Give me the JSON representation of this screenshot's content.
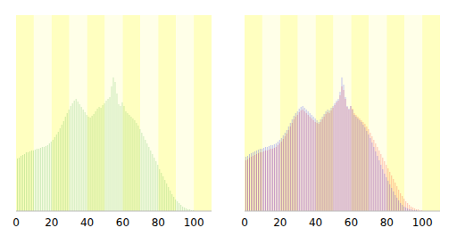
{
  "chart_data": [
    {
      "type": "bar",
      "x": [
        0,
        1,
        2,
        3,
        4,
        5,
        6,
        7,
        8,
        9,
        10,
        11,
        12,
        13,
        14,
        15,
        16,
        17,
        18,
        19,
        20,
        21,
        22,
        23,
        24,
        25,
        26,
        27,
        28,
        29,
        30,
        31,
        32,
        33,
        34,
        35,
        36,
        37,
        38,
        39,
        40,
        41,
        42,
        43,
        44,
        45,
        46,
        47,
        48,
        49,
        50,
        51,
        52,
        53,
        54,
        55,
        56,
        57,
        58,
        59,
        60,
        61,
        62,
        63,
        64,
        65,
        66,
        67,
        68,
        69,
        70,
        71,
        72,
        73,
        74,
        75,
        76,
        77,
        78,
        79,
        80,
        81,
        82,
        83,
        84,
        85,
        86,
        87,
        88,
        89,
        90,
        91,
        92,
        93,
        94,
        95,
        96,
        97,
        98,
        99,
        100
      ],
      "values": [
        57,
        59,
        60,
        62,
        63,
        64,
        66,
        66,
        67,
        68,
        68,
        69,
        70,
        70,
        71,
        72,
        72,
        73,
        74,
        76,
        78,
        80,
        83,
        86,
        89,
        93,
        97,
        101,
        106,
        110,
        114,
        118,
        121,
        124,
        126,
        123,
        120,
        117,
        114,
        111,
        108,
        106,
        105,
        107,
        109,
        112,
        115,
        117,
        116,
        119,
        121,
        124,
        126,
        128,
        140,
        150,
        145,
        132,
        120,
        118,
        122,
        118,
        112,
        110,
        108,
        106,
        104,
        102,
        99,
        96,
        92,
        88,
        84,
        80,
        76,
        72,
        68,
        64,
        60,
        56,
        52,
        47,
        43,
        39,
        35,
        31,
        27,
        23,
        19,
        16,
        13,
        11,
        9,
        7,
        5,
        4,
        3,
        2,
        2,
        1,
        1
      ],
      "color": "#33aa33",
      "xlim": [
        0,
        110
      ],
      "xticks": [
        0,
        20,
        40,
        60,
        80,
        100
      ],
      "ylim": [
        0,
        220
      ],
      "tick_labels": "x"
    },
    {
      "type": "bar",
      "x": [
        0,
        1,
        2,
        3,
        4,
        5,
        6,
        7,
        8,
        9,
        10,
        11,
        12,
        13,
        14,
        15,
        16,
        17,
        18,
        19,
        20,
        21,
        22,
        23,
        24,
        25,
        26,
        27,
        28,
        29,
        30,
        31,
        32,
        33,
        34,
        35,
        36,
        37,
        38,
        39,
        40,
        41,
        42,
        43,
        44,
        45,
        46,
        47,
        48,
        49,
        50,
        51,
        52,
        53,
        54,
        55,
        56,
        57,
        58,
        59,
        60,
        61,
        62,
        63,
        64,
        65,
        66,
        67,
        68,
        69,
        70,
        71,
        72,
        73,
        74,
        75,
        76,
        77,
        78,
        79,
        80,
        81,
        82,
        83,
        84,
        85,
        86,
        87,
        88,
        89,
        90,
        91,
        92,
        93,
        94,
        95,
        96,
        97,
        98,
        99,
        100
      ],
      "series": [
        {
          "color": "#ff0000",
          "values": [
            56,
            57,
            58,
            60,
            61,
            62,
            63,
            64,
            65,
            66,
            66,
            67,
            68,
            68,
            69,
            70,
            70,
            71,
            72,
            74,
            76,
            78,
            81,
            84,
            87,
            91,
            95,
            99,
            103,
            106,
            108,
            111,
            113,
            114,
            112,
            110,
            108,
            106,
            104,
            102,
            100,
            99,
            98,
            100,
            103,
            106,
            109,
            111,
            110,
            113,
            116,
            119,
            122,
            124,
            130,
            140,
            136,
            126,
            117,
            114,
            118,
            115,
            110,
            108,
            106,
            104,
            102,
            100,
            98,
            95,
            92,
            88,
            84,
            80,
            76,
            72,
            68,
            64,
            60,
            56,
            52,
            48,
            44,
            40,
            36,
            32,
            28,
            24,
            20,
            17,
            14,
            11,
            9,
            7,
            5,
            4,
            3,
            2,
            2,
            1,
            1
          ]
        },
        {
          "color": "#0000ff",
          "values": [
            60,
            61,
            62,
            64,
            65,
            66,
            67,
            68,
            69,
            70,
            70,
            71,
            72,
            72,
            73,
            74,
            74,
            75,
            76,
            78,
            80,
            82,
            85,
            88,
            91,
            95,
            99,
            103,
            107,
            110,
            112,
            115,
            117,
            118,
            116,
            114,
            112,
            110,
            108,
            106,
            104,
            102,
            100,
            103,
            106,
            109,
            112,
            114,
            113,
            116,
            118,
            121,
            124,
            126,
            134,
            150,
            142,
            128,
            118,
            115,
            118,
            114,
            108,
            106,
            104,
            102,
            100,
            97,
            94,
            90,
            86,
            82,
            77,
            72,
            67,
            62,
            57,
            52,
            47,
            42,
            38,
            34,
            30,
            26,
            22,
            18,
            15,
            12,
            9,
            7,
            5,
            4,
            3,
            2,
            2,
            1,
            1,
            1,
            0,
            0,
            0
          ]
        }
      ],
      "xlim": [
        0,
        110
      ],
      "xticks": [
        0,
        20,
        40,
        60,
        80,
        100
      ],
      "ylim": [
        0,
        220
      ],
      "tick_labels": "x"
    }
  ]
}
